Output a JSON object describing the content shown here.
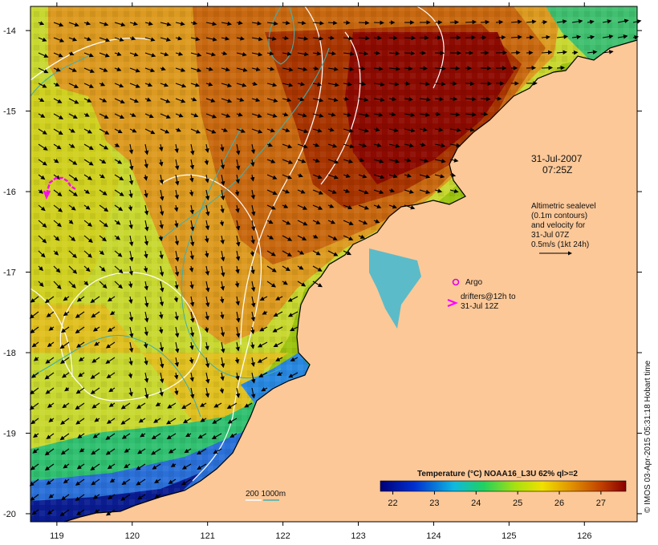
{
  "map": {
    "lat_ticks": [
      "-14",
      "-15",
      "-16",
      "-17",
      "-18",
      "-19",
      "-20"
    ],
    "lon_ticks": [
      "119",
      "120",
      "121",
      "122",
      "123",
      "124",
      "125",
      "126"
    ],
    "lat_range": [
      -20.1,
      -13.7
    ],
    "lon_range": [
      118.65,
      126.7
    ]
  },
  "annotations": {
    "date": "31-Jul-2007",
    "time": "07:25Z",
    "altimetry_lines": [
      "Altimetric sealevel",
      "(0.1m contours)",
      "and velocity for",
      "31-Jul 07Z",
      "0.5m/s (1kt 24h)"
    ],
    "argo_label": "Argo",
    "drifter_lines": [
      "drifters@12h to",
      "31-Jul 12Z"
    ]
  },
  "depth_legend": {
    "label": "200  1000m"
  },
  "colorbar": {
    "title": "Temperature (°C) NOAA16_L3U 62% ql>=2",
    "ticks": [
      "22",
      "23",
      "24",
      "25",
      "26",
      "27"
    ],
    "range": [
      21.7,
      27.6
    ]
  },
  "credit": "© IMOS 03-Apr-2015 05:31:18 Hobart time",
  "colors": {
    "land": "#fcc898",
    "argo": "#e000e0",
    "drifter": "#ff00ff",
    "contour_sealevel": "#ffffff",
    "contour_bathy": "#40b0b0"
  }
}
